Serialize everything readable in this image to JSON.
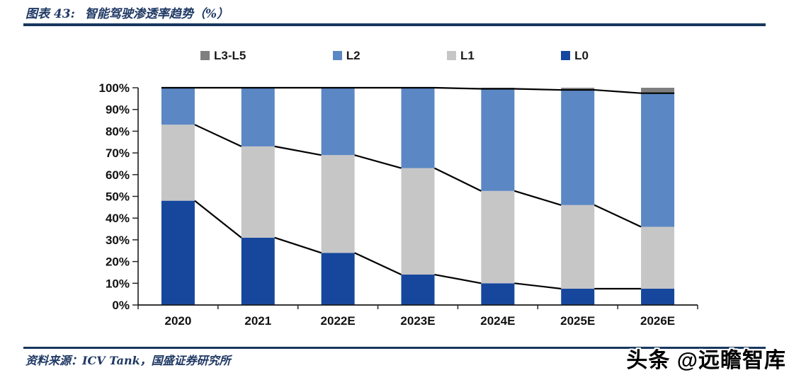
{
  "header": {
    "title_prefix": "图表 43:",
    "title": "智能驾驶渗透率趋势（%）"
  },
  "footer": {
    "source": "资料来源：ICV Tank，国盛证券研究所",
    "watermark": "头条 @远瞻智库"
  },
  "colors": {
    "accent_rule": "#17375E",
    "title_text": "#1F3864",
    "axis": "#1a1a1a",
    "overlay_line": "#000000"
  },
  "chart_data": {
    "type": "bar",
    "stacked": true,
    "title": "智能驾驶渗透率趋势（%）",
    "categories": [
      "2020",
      "2021",
      "2022E",
      "2023E",
      "2024E",
      "2025E",
      "2026E"
    ],
    "series": [
      {
        "name": "L0",
        "color": "#16479D",
        "values": [
          48,
          31,
          24,
          14,
          10,
          7.5,
          7.5
        ]
      },
      {
        "name": "L1",
        "color": "#C6C6C6",
        "values": [
          35,
          42,
          45,
          49,
          42.5,
          38.5,
          28.5
        ]
      },
      {
        "name": "L2",
        "color": "#5B87C4",
        "values": [
          17,
          27,
          31,
          37,
          47,
          53,
          61.5
        ]
      },
      {
        "name": "L3-L5",
        "color": "#7F7F7F",
        "values": [
          0,
          0,
          0,
          0,
          0.5,
          1,
          2.5
        ]
      }
    ],
    "legend": [
      {
        "label": "L3-L5",
        "color": "#7F7F7F"
      },
      {
        "label": "L2",
        "color": "#5B87C4"
      },
      {
        "label": "L1",
        "color": "#C6C6C6"
      },
      {
        "label": "L0",
        "color": "#16479D"
      }
    ],
    "legend_position": "top",
    "xlabel": "",
    "ylabel": "",
    "ylim": [
      0,
      100
    ],
    "ytick_step": 10,
    "ytick_suffix": "%",
    "grid": false,
    "overlay_lines": "black segments connecting cumulative stack boundaries (L0 top, L0+L1 top, L0+L1+L2 top) between adjacent bars"
  }
}
